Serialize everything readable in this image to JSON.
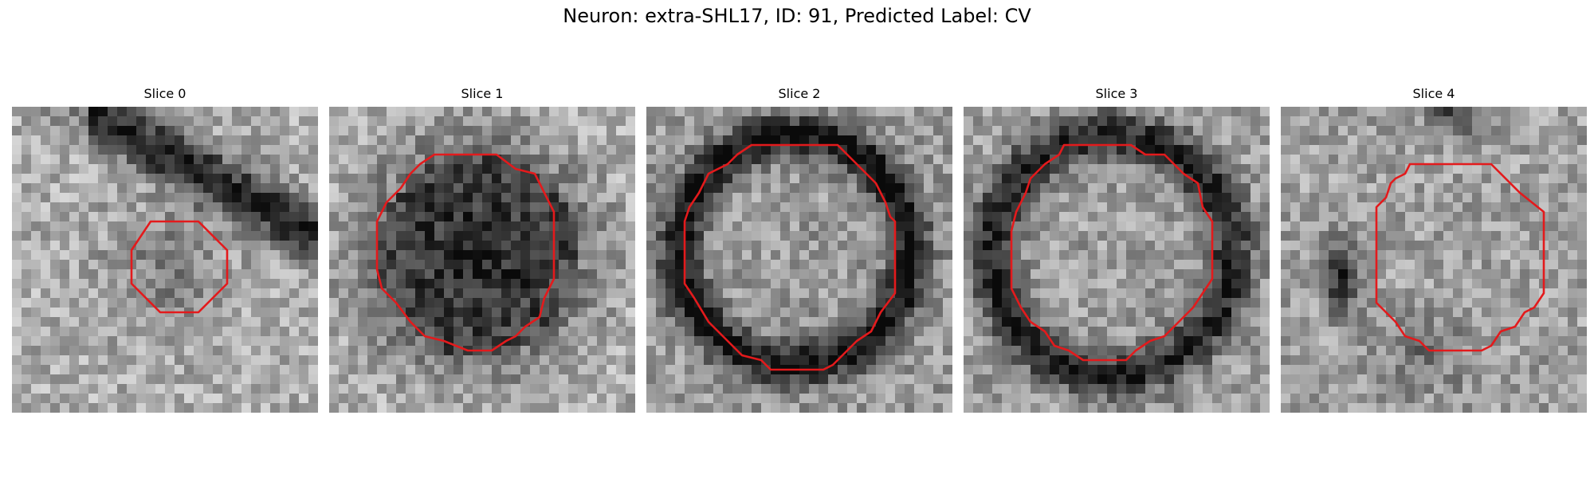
{
  "figure": {
    "title": "Neuron: extra-SHL17, ID: 91, Predicted Label: CV"
  },
  "colors": {
    "background": "#ffffff",
    "contour": "#e31a1c",
    "colormap": "grayscale"
  },
  "panels": [
    {
      "title": "Slice 0",
      "contour_shape": "small-octagon-center"
    },
    {
      "title": "Slice 1",
      "contour_shape": "large-circle"
    },
    {
      "title": "Slice 2",
      "contour_shape": "large-circle"
    },
    {
      "title": "Slice 3",
      "contour_shape": "large-circle"
    },
    {
      "title": "Slice 4",
      "contour_shape": "medium-circle-right"
    }
  ]
}
